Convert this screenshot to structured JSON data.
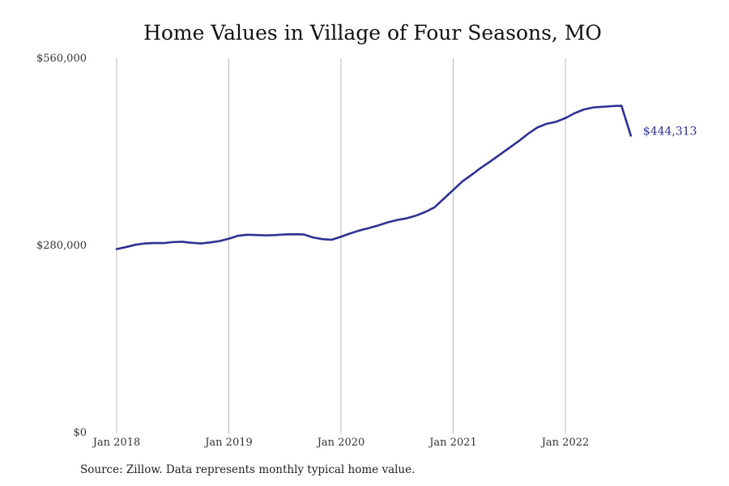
{
  "chart_data": {
    "type": "line",
    "title": "Home Values in Village of Four Seasons, MO",
    "xlabel": "",
    "ylabel": "",
    "ylim": [
      0,
      560000
    ],
    "y_ticks": [
      0,
      280000,
      560000
    ],
    "y_tick_labels": [
      "$0",
      "$280,000",
      "$560,000"
    ],
    "x_ticks": [
      "2018-01",
      "2019-01",
      "2020-01",
      "2021-01",
      "2022-01"
    ],
    "x_tick_labels": [
      "Jan 2018",
      "Jan 2019",
      "Jan 2020",
      "Jan 2021",
      "Jan 2022"
    ],
    "grid": "vertical",
    "line_color": "#2e3191",
    "end_label": "$444,313",
    "series": [
      {
        "x": [
          "2018-01",
          "2018-02",
          "2018-03",
          "2018-04",
          "2018-05",
          "2018-06",
          "2018-07",
          "2018-08",
          "2018-09",
          "2018-10",
          "2018-11",
          "2018-12",
          "2019-01",
          "2019-02",
          "2019-03",
          "2019-04",
          "2019-05",
          "2019-06",
          "2019-07",
          "2019-08",
          "2019-09",
          "2019-10",
          "2019-11",
          "2019-12",
          "2020-01",
          "2020-02",
          "2020-03",
          "2020-04",
          "2020-05",
          "2020-06",
          "2020-07",
          "2020-08",
          "2020-09",
          "2020-10",
          "2020-11",
          "2020-12",
          "2021-01",
          "2021-02",
          "2021-03",
          "2021-04",
          "2021-05",
          "2021-06",
          "2021-07",
          "2021-08",
          "2021-09",
          "2021-10",
          "2021-11",
          "2021-12",
          "2022-01",
          "2022-02",
          "2022-03",
          "2022-04",
          "2022-05",
          "2022-06",
          "2022-07",
          "2022-08"
        ],
        "values": [
          274500,
          277500,
          281000,
          283000,
          283500,
          283500,
          285000,
          285500,
          284000,
          283000,
          284500,
          286500,
          290000,
          294500,
          296000,
          295500,
          295000,
          295500,
          296500,
          296800,
          296500,
          292000,
          289500,
          288500,
          293000,
          298000,
          302500,
          306000,
          310000,
          314500,
          318000,
          320500,
          324500,
          330000,
          337000,
          350000,
          363000,
          376000,
          386000,
          396500,
          406000,
          416000,
          426000,
          436000,
          447000,
          456500,
          462000,
          465000,
          470500,
          478000,
          483500,
          486500,
          487500,
          488500,
          489000,
          444313
        ],
        "color": "#2e3191"
      }
    ],
    "source": "Source: Zillow. Data represents monthly typical home value."
  }
}
